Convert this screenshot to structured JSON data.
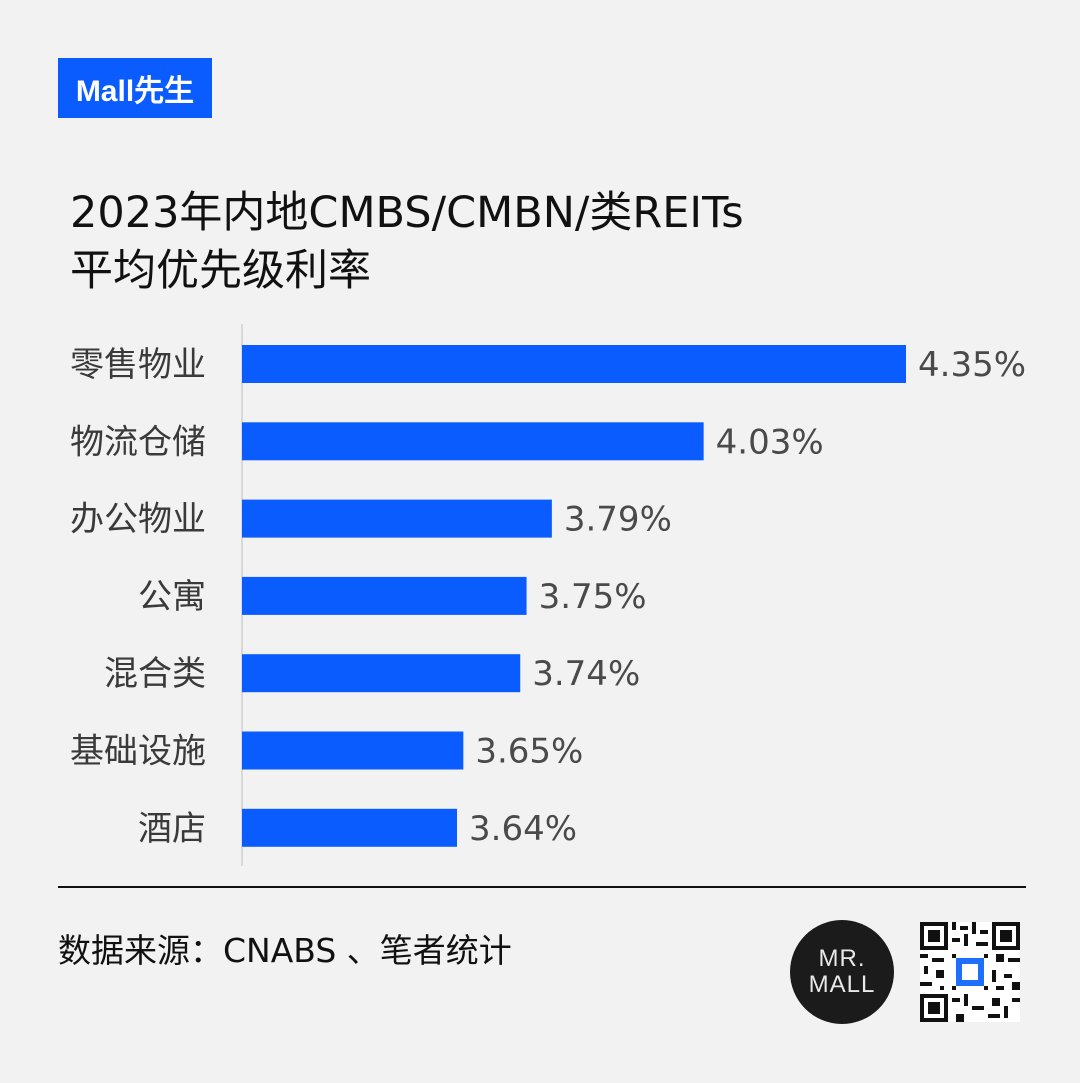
{
  "brand": {
    "label": "Mall先生"
  },
  "title": {
    "line1": "2023年内地CMBS/CMBN/类REITs",
    "line2": "平均优先级利率"
  },
  "chart_data": {
    "type": "bar",
    "orientation": "horizontal",
    "categories": [
      "零售物业",
      "物流仓储",
      "办公物业",
      "公寓",
      "混合类",
      "基础设施",
      "酒店"
    ],
    "values": [
      4.35,
      4.03,
      3.79,
      3.75,
      3.74,
      3.65,
      3.64
    ],
    "value_labels": [
      "4.35%",
      "4.03%",
      "3.79%",
      "3.75%",
      "3.74%",
      "3.65%",
      "3.64%"
    ],
    "axis_min_implied": 3.3,
    "bar_color": "#0a5cff",
    "grid": false,
    "legend": "none"
  },
  "footer": {
    "source": "数据来源：CNABS 、笔者统计",
    "logo_line1": "MR.",
    "logo_line2": "MALL"
  },
  "colors": {
    "accent": "#0a5cff",
    "background": "#f2f2f2"
  }
}
